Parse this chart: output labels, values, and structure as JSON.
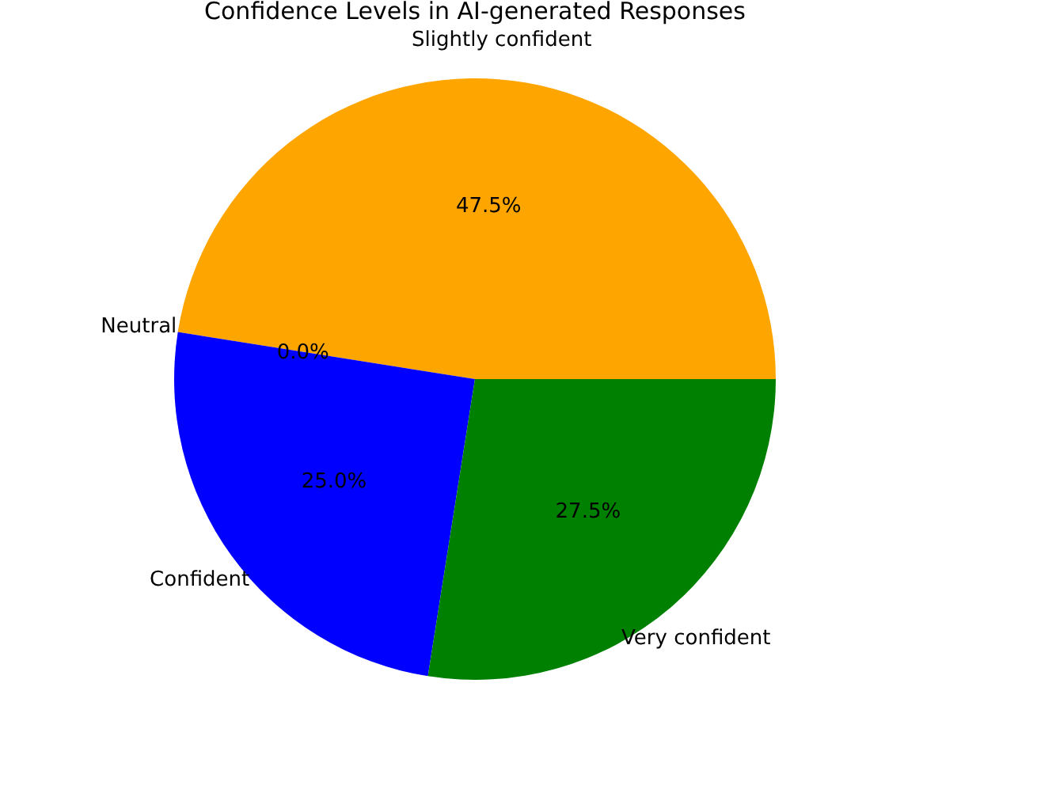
{
  "chart_data": {
    "type": "pie",
    "title": "Confidence Levels in AI-generated Responses",
    "categories": [
      "Slightly confident",
      "Neutral",
      "Confident",
      "Very confident"
    ],
    "values": [
      47.5,
      0.0,
      25.0,
      27.5
    ],
    "colors": [
      "#ffa500",
      "#ff0000",
      "#0000ff",
      "#008000"
    ],
    "value_labels": [
      "47.5%",
      "0.0%",
      "25.0%",
      "27.5%"
    ],
    "legend": false
  }
}
